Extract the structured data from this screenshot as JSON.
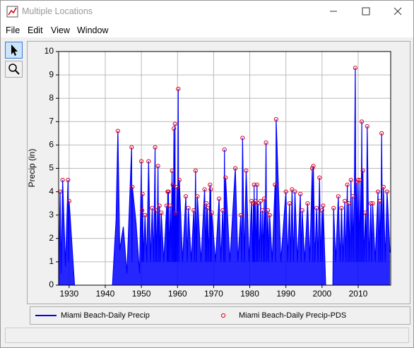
{
  "window": {
    "title": "Multiple Locations",
    "menu": [
      "File",
      "Edit",
      "View",
      "Window"
    ]
  },
  "chart_data": {
    "type": "line",
    "y_label": "Precip (in)",
    "xlim": [
      1927.1,
      2019.0
    ],
    "xticks": [
      1930,
      1940,
      1950,
      1960,
      1970,
      1980,
      1990,
      2000,
      2010
    ],
    "ylim": [
      0,
      10
    ],
    "yticks": [
      0,
      1,
      2,
      3,
      4,
      5,
      6,
      7,
      8,
      9,
      10
    ],
    "grid": true,
    "series": [
      {
        "name": "Miami Beach-Daily Precip",
        "type": "line",
        "color": "#0000ff",
        "x": [
          1927.1,
          1927.5,
          1927.8,
          1928.2,
          1929,
          1929.7,
          1929.85,
          1930,
          1931.5,
          1936,
          1942,
          1943,
          1943.5,
          1944,
          1945,
          1946,
          1947.3,
          1947.4,
          1947.5,
          1948.5,
          1949.5,
          1950,
          1950.1,
          1950.2,
          1950.25,
          1950.3,
          1950.6,
          1951,
          1951.5,
          1952,
          1952.5,
          1953,
          1953.4,
          1953.8,
          1953.9,
          1954,
          1954.3,
          1954.6,
          1954.8,
          1955,
          1955.2,
          1955.5,
          1956.2,
          1957,
          1957.15,
          1957.3,
          1957.4,
          1957.5,
          1957.7,
          1958,
          1958.2,
          1958.5,
          1958.6,
          1958.7,
          1958.85,
          1959,
          1959.15,
          1959.3,
          1959.4,
          1959.5,
          1959.65,
          1959.8,
          1960,
          1960.2,
          1960.35,
          1960.5,
          1961.4,
          1962.3,
          1962.7,
          1963,
          1963.8,
          1964.5,
          1964.7,
          1965,
          1965.2,
          1965.5,
          1966.5,
          1967.5,
          1967.8,
          1968,
          1968.15,
          1968.3,
          1968.6,
          1969,
          1969.1,
          1969.2,
          1969.35,
          1969.5,
          1970.5,
          1971.5,
          1972,
          1972.5,
          1972.8,
          1973,
          1973.15,
          1973.3,
          1974.5,
          1976,
          1976.7,
          1977.5,
          1977.8,
          1978,
          1978.5,
          1979,
          1979.8,
          1980.5,
          1980.8,
          1981,
          1981.1,
          1981.2,
          1981.35,
          1981.5,
          1981.8,
          1982,
          1982.15,
          1982.3,
          1982.6,
          1983,
          1983.2,
          1983.5,
          1983.8,
          1984,
          1984.2,
          1984.5,
          1984.7,
          1985,
          1985.2,
          1985.5,
          1986.2,
          1987,
          1987.15,
          1987.3,
          1988.6,
          1990,
          1990.5,
          1991,
          1991.3,
          1991.7,
          1992.1,
          1992.5,
          1993.2,
          1994,
          1994.2,
          1994.5,
          1995.2,
          1996,
          1996.6,
          1997.3,
          1997.45,
          1997.6,
          1998,
          1998.5,
          1998.9,
          1999.3,
          1999.6,
          2000,
          2000.15,
          2000.3,
          2001,
          2002,
          2003,
          2003.2,
          2003.8,
          2004.5,
          2005,
          2005.4,
          2005.8,
          2006.3,
          2006.6,
          2007,
          2007.2,
          2007.4,
          2007.7,
          2008,
          2008.25,
          2008.5,
          2008.8,
          2009.2,
          2009.4,
          2009.6,
          2009.8,
          2010,
          2010.25,
          2010.5,
          2010.75,
          2011,
          2011.15,
          2011.3,
          2011.6,
          2012,
          2012.25,
          2012.5,
          2013,
          2013.5,
          2013.75,
          2014,
          2014.7,
          2015.5,
          2015.75,
          2016,
          2016.25,
          2016.5,
          2016.75,
          2017,
          2017.5,
          2018,
          2018.8
        ],
        "values": [
          0,
          4.0,
          0.5,
          4.5,
          0.8,
          4.5,
          1,
          3.6,
          0,
          null,
          0,
          2.8,
          6.6,
          1.5,
          2.5,
          0.5,
          5.9,
          1,
          4.2,
          2.7,
          0.5,
          5.3,
          1,
          3.2,
          1,
          3.9,
          1,
          3.0,
          1,
          5.3,
          1,
          3.3,
          1,
          5.9,
          1,
          3.2,
          1,
          5.1,
          1,
          3.4,
          1,
          3.1,
          1,
          3.4,
          1,
          4.0,
          1,
          4.0,
          1,
          3.4,
          1,
          4.9,
          1,
          4.3,
          1,
          6.7,
          1,
          6.9,
          1,
          3.1,
          1,
          4.2,
          1,
          8.4,
          1,
          4.5,
          1,
          3.8,
          1,
          3.3,
          1,
          3.2,
          1,
          4.9,
          1,
          3.8,
          1,
          4.1,
          1,
          3.5,
          1,
          3.3,
          1,
          4.3,
          1,
          4.1,
          1,
          3.1,
          1,
          3.7,
          1,
          3.2,
          1,
          5.8,
          1,
          4.6,
          1,
          5.0,
          1,
          3.0,
          1,
          6.3,
          1,
          4.9,
          1,
          3.6,
          1,
          3.5,
          1,
          4.3,
          1,
          3.6,
          1,
          4.3,
          1,
          3.5,
          1,
          3.6,
          1,
          3.2,
          1,
          3.7,
          1,
          6.1,
          1,
          3.2,
          1,
          3.0,
          1,
          4.3,
          1,
          7.1,
          1,
          4.0,
          1,
          3.5,
          1,
          4.1,
          1,
          4.0,
          1,
          3.9,
          1,
          3.2,
          1,
          3.5,
          1,
          5.0,
          1,
          5.1,
          1,
          3.3,
          1,
          4.6,
          1,
          3.2,
          1,
          3.4,
          0,
          null,
          0,
          3.3,
          1,
          3.8,
          1,
          3.3,
          1,
          3.6,
          1,
          4.3,
          1,
          3.5,
          1,
          4.5,
          1,
          3.8,
          1,
          9.3,
          1,
          4.4,
          1,
          4.5,
          1,
          4.5,
          1,
          7.0,
          1,
          4.9,
          1,
          3.1,
          1,
          6.8,
          1,
          3.5,
          1,
          3.5,
          1,
          4.0,
          1,
          3.6,
          1,
          6.5,
          1,
          4.2,
          1,
          4.0,
          1.4
        ]
      },
      {
        "name": "Miami Beach-Daily Precip-PDS",
        "type": "scatter",
        "color": "#e0001a",
        "x": [
          1927.5,
          1928.2,
          1929.7,
          1930,
          1943.5,
          1947.3,
          1947.5,
          1950,
          1950.2,
          1950.3,
          1951,
          1952,
          1953,
          1953.8,
          1954,
          1954.6,
          1955,
          1955.5,
          1957,
          1957.3,
          1957.5,
          1958,
          1958.5,
          1958.7,
          1959,
          1959.3,
          1959.5,
          1959.8,
          1960.2,
          1960.5,
          1962.3,
          1963,
          1964.5,
          1965,
          1965.5,
          1967.5,
          1968,
          1968.3,
          1969,
          1969.2,
          1969.5,
          1971.5,
          1972.5,
          1973,
          1973.3,
          1976,
          1977.5,
          1978,
          1979,
          1980.5,
          1981,
          1981.2,
          1981.5,
          1982,
          1982.3,
          1983,
          1983.5,
          1984,
          1984.5,
          1985,
          1985.5,
          1987,
          1987.3,
          1990,
          1991,
          1991.7,
          1992.5,
          1994,
          1994.5,
          1996,
          1997.3,
          1997.6,
          1998.5,
          1999.3,
          2000,
          2000.3,
          2003.2,
          2004.5,
          2005.4,
          2006.3,
          2007,
          2007.4,
          2008,
          2008.5,
          2009.2,
          2009.6,
          2010,
          2010.5,
          2011,
          2011.3,
          2012,
          2012.5,
          2013.5,
          2014,
          2015.5,
          2016,
          2016.5,
          2017,
          2018
        ],
        "values": [
          4.0,
          4.5,
          4.5,
          3.6,
          6.6,
          5.9,
          4.2,
          5.3,
          3.2,
          3.9,
          3.0,
          5.3,
          3.3,
          5.9,
          3.2,
          5.1,
          3.4,
          3.1,
          3.4,
          4.0,
          4.0,
          3.4,
          4.9,
          4.3,
          6.7,
          6.9,
          3.1,
          4.2,
          8.4,
          4.5,
          3.8,
          3.3,
          3.2,
          4.9,
          3.8,
          4.1,
          3.5,
          3.3,
          4.3,
          4.1,
          3.1,
          3.7,
          3.2,
          5.8,
          4.6,
          5.0,
          3.0,
          6.3,
          4.9,
          3.6,
          3.5,
          4.3,
          3.6,
          4.3,
          3.5,
          3.6,
          3.2,
          3.7,
          6.1,
          3.2,
          3.0,
          4.3,
          7.1,
          4.0,
          3.5,
          4.1,
          4.0,
          3.9,
          3.2,
          3.5,
          5.0,
          5.1,
          3.3,
          4.6,
          3.2,
          3.4,
          3.3,
          3.8,
          3.3,
          3.6,
          4.3,
          3.5,
          4.5,
          3.8,
          9.3,
          4.4,
          4.5,
          4.5,
          7.0,
          4.9,
          3.1,
          6.8,
          3.5,
          3.5,
          4.0,
          3.6,
          6.5,
          4.2,
          4.0
        ]
      }
    ]
  }
}
